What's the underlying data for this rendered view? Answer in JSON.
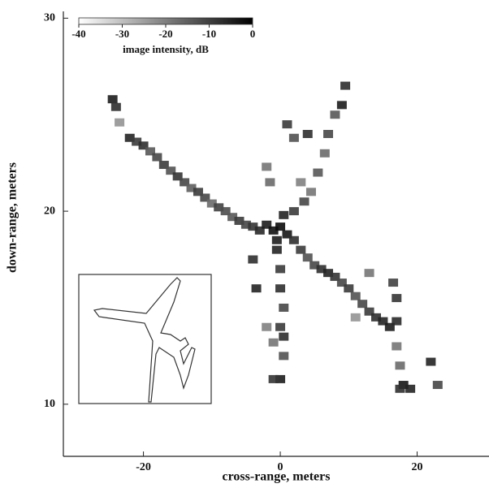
{
  "chart_data": {
    "type": "scatter",
    "x_label": "cross-range, meters",
    "y_label": "down-range, meters",
    "xlim": [
      -31.7,
      30.5
    ],
    "ylim": [
      7.3,
      30.1
    ],
    "xticks": [
      -20,
      0,
      20
    ],
    "yticks": [
      10,
      20,
      30
    ],
    "x": [
      -24.5,
      -24,
      -23.5,
      -22,
      -21,
      -20,
      -19,
      -18,
      -17,
      -16,
      -15,
      -14,
      -13,
      -12,
      -11,
      -10,
      -9,
      -8,
      -7,
      -6,
      -5,
      -4,
      -3,
      -2,
      -1,
      0,
      1,
      0.5,
      -0.5,
      2,
      3,
      4,
      5,
      6,
      7,
      8,
      9,
      10,
      11,
      12,
      13,
      14,
      15,
      16,
      17,
      17,
      16.5,
      17,
      17.5,
      18,
      19,
      17.5,
      9.5,
      9,
      8,
      7,
      6.5,
      5.5,
      4.5,
      3.5,
      3,
      2,
      1,
      2,
      4,
      -2,
      -1.5,
      -0.5,
      0,
      0,
      0.5,
      0,
      0.5,
      0.5,
      0,
      -1,
      -3.5,
      -4,
      -2,
      -1,
      22,
      23,
      13,
      11
    ],
    "y": [
      25.8,
      25.4,
      24.6,
      23.8,
      23.6,
      23.4,
      23.1,
      22.8,
      22.4,
      22.1,
      21.8,
      21.5,
      21.2,
      21.0,
      20.7,
      20.4,
      20.2,
      20.0,
      19.7,
      19.5,
      19.3,
      19.2,
      19.0,
      19.3,
      19.0,
      19.2,
      18.8,
      19.8,
      18.5,
      18.5,
      18.0,
      17.6,
      17.2,
      17.0,
      16.8,
      16.6,
      16.3,
      16.0,
      15.6,
      15.2,
      14.8,
      14.5,
      14.3,
      14.0,
      14.3,
      15.5,
      16.3,
      13,
      12,
      11,
      10.8,
      10.8,
      26.5,
      25.5,
      25,
      24.0,
      23.0,
      22,
      21,
      20.5,
      21.5,
      20,
      24.5,
      23.8,
      24.0,
      22.3,
      21.5,
      18,
      17,
      16,
      15,
      14,
      13.5,
      12.5,
      11.3,
      11.3,
      16,
      17.5,
      14,
      13.2,
      12.2,
      11,
      16.8,
      14.5
    ],
    "values": [
      -5,
      -8,
      -25,
      -6,
      -10,
      -8,
      -15,
      -12,
      -10,
      -14,
      -9,
      -12,
      -16,
      -10,
      -12,
      -18,
      -11,
      -13,
      -15,
      -10,
      -12,
      -9,
      -7,
      -5,
      -3,
      -2,
      -4,
      -6,
      -5,
      -8,
      -10,
      -14,
      -12,
      -8,
      -6,
      -9,
      -12,
      -10,
      -14,
      -12,
      -10,
      -8,
      -6,
      -5,
      -7,
      -9,
      -11,
      -20,
      -18,
      -4,
      -6,
      -8,
      -8,
      -5,
      -15,
      -12,
      -18,
      -15,
      -20,
      -12,
      -22,
      -10,
      -10,
      -14,
      -8,
      -20,
      -18,
      -6,
      -10,
      -8,
      -12,
      -10,
      -8,
      -14,
      -5,
      -9,
      -6,
      -8,
      -22,
      -20,
      -6,
      -12,
      -20,
      -25
    ],
    "colorbar": {
      "label": "image intensity, dB",
      "lim": [
        -40,
        0
      ],
      "ticks": [
        -40,
        -30,
        -20,
        -10,
        0
      ]
    }
  }
}
